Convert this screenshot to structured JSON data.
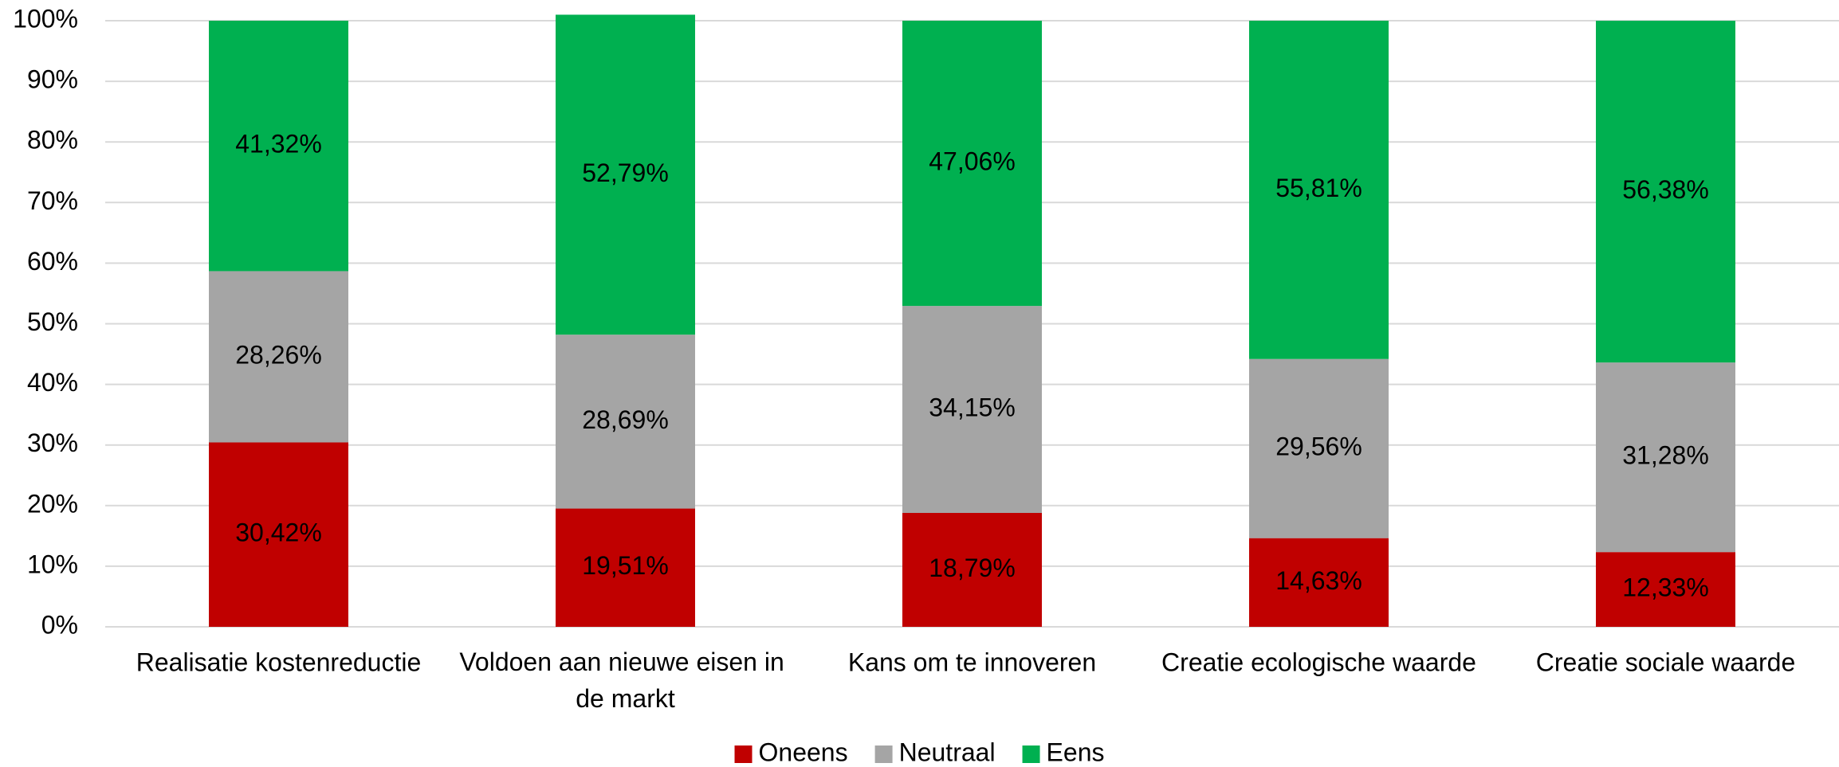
{
  "chart_data": {
    "type": "stacked_bar",
    "categories": [
      "Realisatie kostenreductie",
      "Voldoen aan nieuwe eisen in de markt",
      "Kans om te innoveren",
      "Creatie ecologische waarde",
      "Creatie sociale waarde"
    ],
    "series": [
      {
        "name": "Oneens",
        "color": "#c00000",
        "values": [
          30.42,
          19.51,
          18.79,
          14.63,
          12.33
        ],
        "value_labels": [
          "30,42%",
          "19,51%",
          "18,79%",
          "14,63%",
          "12,33%"
        ]
      },
      {
        "name": "Neutraal",
        "color": "#a5a5a5",
        "values": [
          28.26,
          28.69,
          34.15,
          29.56,
          31.28
        ],
        "value_labels": [
          "28,26%",
          "28,69%",
          "34,15%",
          "29,56%",
          "31,28%"
        ]
      },
      {
        "name": "Eens",
        "color": "#00b050",
        "values": [
          41.32,
          52.79,
          47.06,
          55.81,
          56.38
        ],
        "value_labels": [
          "41,32%",
          "52,79%",
          "47,06%",
          "55,81%",
          "56,38%"
        ]
      }
    ],
    "ylim": [
      0,
      100
    ],
    "yticks": [
      {
        "value": 0,
        "label": "0%"
      },
      {
        "value": 10,
        "label": "10%"
      },
      {
        "value": 20,
        "label": "20%"
      },
      {
        "value": 30,
        "label": "30%"
      },
      {
        "value": 40,
        "label": "40%"
      },
      {
        "value": 50,
        "label": "50%"
      },
      {
        "value": 60,
        "label": "60%"
      },
      {
        "value": 70,
        "label": "70%"
      },
      {
        "value": 80,
        "label": "80%"
      },
      {
        "value": 90,
        "label": "90%"
      },
      {
        "value": 100,
        "label": "100%"
      }
    ],
    "grid": true,
    "legend": "bottom"
  }
}
